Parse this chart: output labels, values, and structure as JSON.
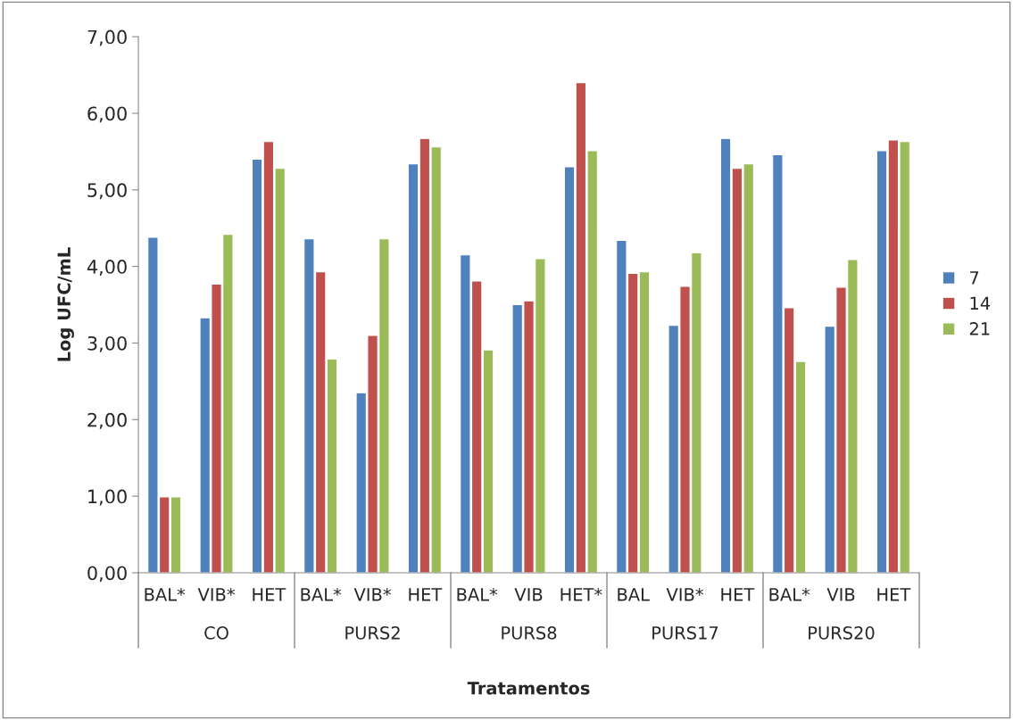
{
  "chart_data": {
    "type": "bar",
    "xlabel": "Tratamentos",
    "ylabel": "Log UFC/mL",
    "categories": [
      "BAL*",
      "VIB*",
      "HET",
      "BAL*",
      "VIB*",
      "HET",
      "BAL*",
      "VIB",
      "HET*",
      "BAL",
      "VIB*",
      "HET",
      "BAL*",
      "VIB",
      "HET"
    ],
    "annotations": [
      "CO",
      "PURS2",
      "PURS8",
      "PURS17",
      "PURS20"
    ],
    "series": [
      {
        "name": "7",
        "color": "#4f81bd",
        "values": [
          4.38,
          3.33,
          5.4,
          4.36,
          2.35,
          5.34,
          4.15,
          3.5,
          5.3,
          4.34,
          3.23,
          5.67,
          5.46,
          3.22,
          5.51
        ]
      },
      {
        "name": "14",
        "color": "#c0504d",
        "values": [
          0.99,
          3.77,
          5.63,
          3.93,
          3.1,
          5.67,
          3.81,
          3.55,
          6.4,
          3.91,
          3.74,
          5.28,
          3.46,
          3.73,
          5.65
        ]
      },
      {
        "name": "21",
        "color": "#9bbb59",
        "values": [
          0.99,
          4.42,
          5.28,
          2.79,
          4.36,
          5.56,
          2.91,
          4.1,
          5.51,
          3.93,
          4.18,
          5.34,
          2.76,
          4.09,
          5.63
        ]
      }
    ],
    "ylim": [
      0,
      7
    ],
    "yticks": [
      {
        "value": 0,
        "label": "0,00"
      },
      {
        "value": 1,
        "label": "1,00"
      },
      {
        "value": 2,
        "label": "2,00"
      },
      {
        "value": 3,
        "label": "3,00"
      },
      {
        "value": 4,
        "label": "4,00"
      },
      {
        "value": 5,
        "label": "5,00"
      },
      {
        "value": 6,
        "label": "6,00"
      },
      {
        "value": 7,
        "label": "7,00"
      }
    ],
    "grid": false,
    "legend": "right"
  }
}
